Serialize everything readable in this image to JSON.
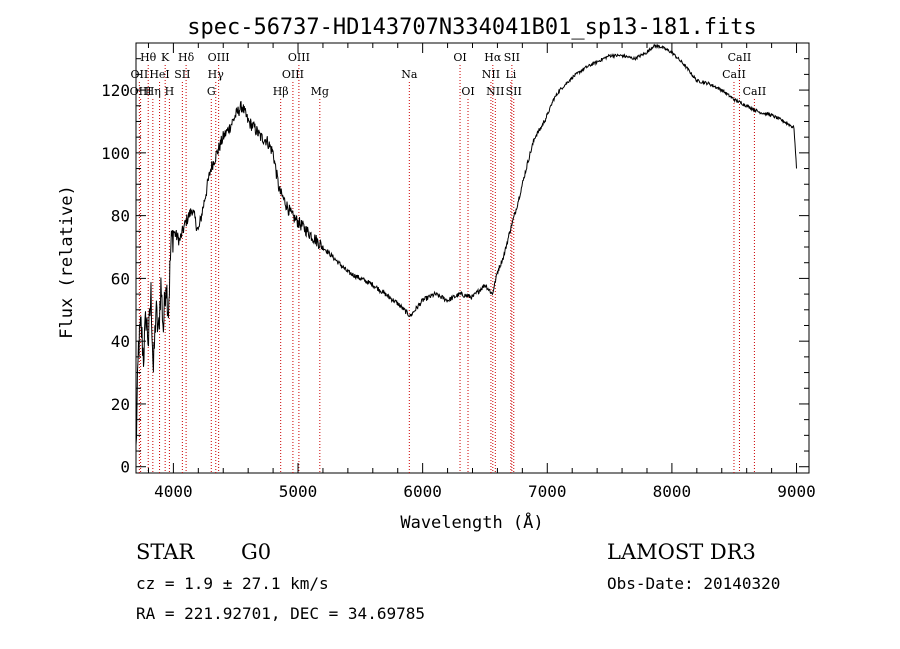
{
  "chart_data": {
    "type": "line",
    "title": "spec-56737-HD143707N334041B01_sp13-181.fits",
    "xlabel": "Wavelength (Å)",
    "ylabel": "Flux (relative)",
    "xlim": [
      3700,
      9100
    ],
    "ylim": [
      -2,
      135
    ],
    "x_ticks": [
      4000,
      5000,
      6000,
      7000,
      8000,
      9000
    ],
    "y_ticks": [
      0,
      20,
      40,
      60,
      80,
      100,
      120
    ],
    "grid": false,
    "series": [
      {
        "x": [
          3700,
          3720,
          3740,
          3760,
          3780,
          3800,
          3820,
          3840,
          3860,
          3880,
          3900,
          3920,
          3940,
          3960,
          3980,
          4000,
          4050,
          4100,
          4150,
          4200,
          4250,
          4300,
          4350,
          4400,
          4450,
          4500,
          4550,
          4600,
          4650,
          4700,
          4750,
          4800,
          4850,
          4900,
          4950,
          5000,
          5050,
          5100,
          5150,
          5200,
          5300,
          5400,
          5500,
          5600,
          5700,
          5800,
          5900,
          6000,
          6100,
          6200,
          6300,
          6400,
          6500,
          6560,
          6600,
          6650,
          6700,
          6750,
          6800,
          6850,
          6900,
          6950,
          7000,
          7050,
          7100,
          7200,
          7300,
          7400,
          7500,
          7600,
          7700,
          7800,
          7850,
          7900,
          8000,
          8100,
          8200,
          8300,
          8400,
          8500,
          8600,
          8700,
          8800,
          8900,
          8980,
          9000
        ],
        "y": [
          5,
          38,
          45,
          35,
          48,
          40,
          55,
          30,
          50,
          42,
          58,
          44,
          60,
          50,
          70,
          75,
          72,
          78,
          82,
          75,
          85,
          95,
          100,
          105,
          108,
          112,
          115,
          110,
          108,
          105,
          104,
          100,
          88,
          84,
          80,
          78,
          76,
          74,
          72,
          70,
          66,
          62,
          60,
          58,
          55,
          52,
          48,
          53,
          55,
          53,
          55,
          54,
          58,
          55,
          62,
          67,
          75,
          82,
          90,
          98,
          105,
          108,
          112,
          117,
          120,
          124,
          127,
          129,
          131,
          131,
          130,
          132,
          134,
          134,
          132,
          128,
          123,
          122,
          120,
          117,
          115,
          113,
          112,
          110,
          108,
          95
        ]
      }
    ],
    "line_markers": [
      {
        "label": "Hθ",
        "x": 3798,
        "row": 0
      },
      {
        "label": "OII",
        "x": 3727,
        "row": 1
      },
      {
        "label": "OIII",
        "x": 3737,
        "row": 2
      },
      {
        "label": "Hη",
        "x": 3835,
        "row": 2
      },
      {
        "label": "HeI",
        "x": 3889,
        "row": 1
      },
      {
        "label": "K",
        "x": 3934,
        "row": 0
      },
      {
        "label": "H",
        "x": 3968,
        "row": 2
      },
      {
        "label": "SII",
        "x": 4072,
        "row": 1
      },
      {
        "label": "Hδ",
        "x": 4102,
        "row": 0
      },
      {
        "label": "G",
        "x": 4304,
        "row": 2
      },
      {
        "label": "OIII",
        "x": 4363,
        "row": 0
      },
      {
        "label": "Hγ",
        "x": 4340,
        "row": 1
      },
      {
        "label": "Hβ",
        "x": 4861,
        "row": 2
      },
      {
        "label": "OIII",
        "x": 4959,
        "row": 1
      },
      {
        "label": "OIII",
        "x": 5007,
        "row": 0
      },
      {
        "label": "Mg",
        "x": 5175,
        "row": 2
      },
      {
        "label": "Na",
        "x": 5893,
        "row": 1
      },
      {
        "label": "OI",
        "x": 6300,
        "row": 0
      },
      {
        "label": "OI",
        "x": 6364,
        "row": 2
      },
      {
        "label": "NII",
        "x": 6548,
        "row": 1
      },
      {
        "label": "Hα",
        "x": 6563,
        "row": 0
      },
      {
        "label": "NII",
        "x": 6583,
        "row": 2
      },
      {
        "label": "Li",
        "x": 6708,
        "row": 1
      },
      {
        "label": "SII",
        "x": 6716,
        "row": 0
      },
      {
        "label": "SII",
        "x": 6731,
        "row": 2
      },
      {
        "label": "CaII",
        "x": 8498,
        "row": 1
      },
      {
        "label": "CaII",
        "x": 8542,
        "row": 0
      },
      {
        "label": "CaII",
        "x": 8662,
        "row": 2
      }
    ],
    "marker_color": "#cc0000"
  },
  "footer": {
    "class_label": "STAR",
    "subclass": "G0",
    "survey": "LAMOST DR3",
    "cz": "cz = 1.9 ± 27.1 km/s",
    "obs_date": "Obs-Date: 20140320",
    "coords": "RA = 221.92701, DEC =  34.69785"
  }
}
